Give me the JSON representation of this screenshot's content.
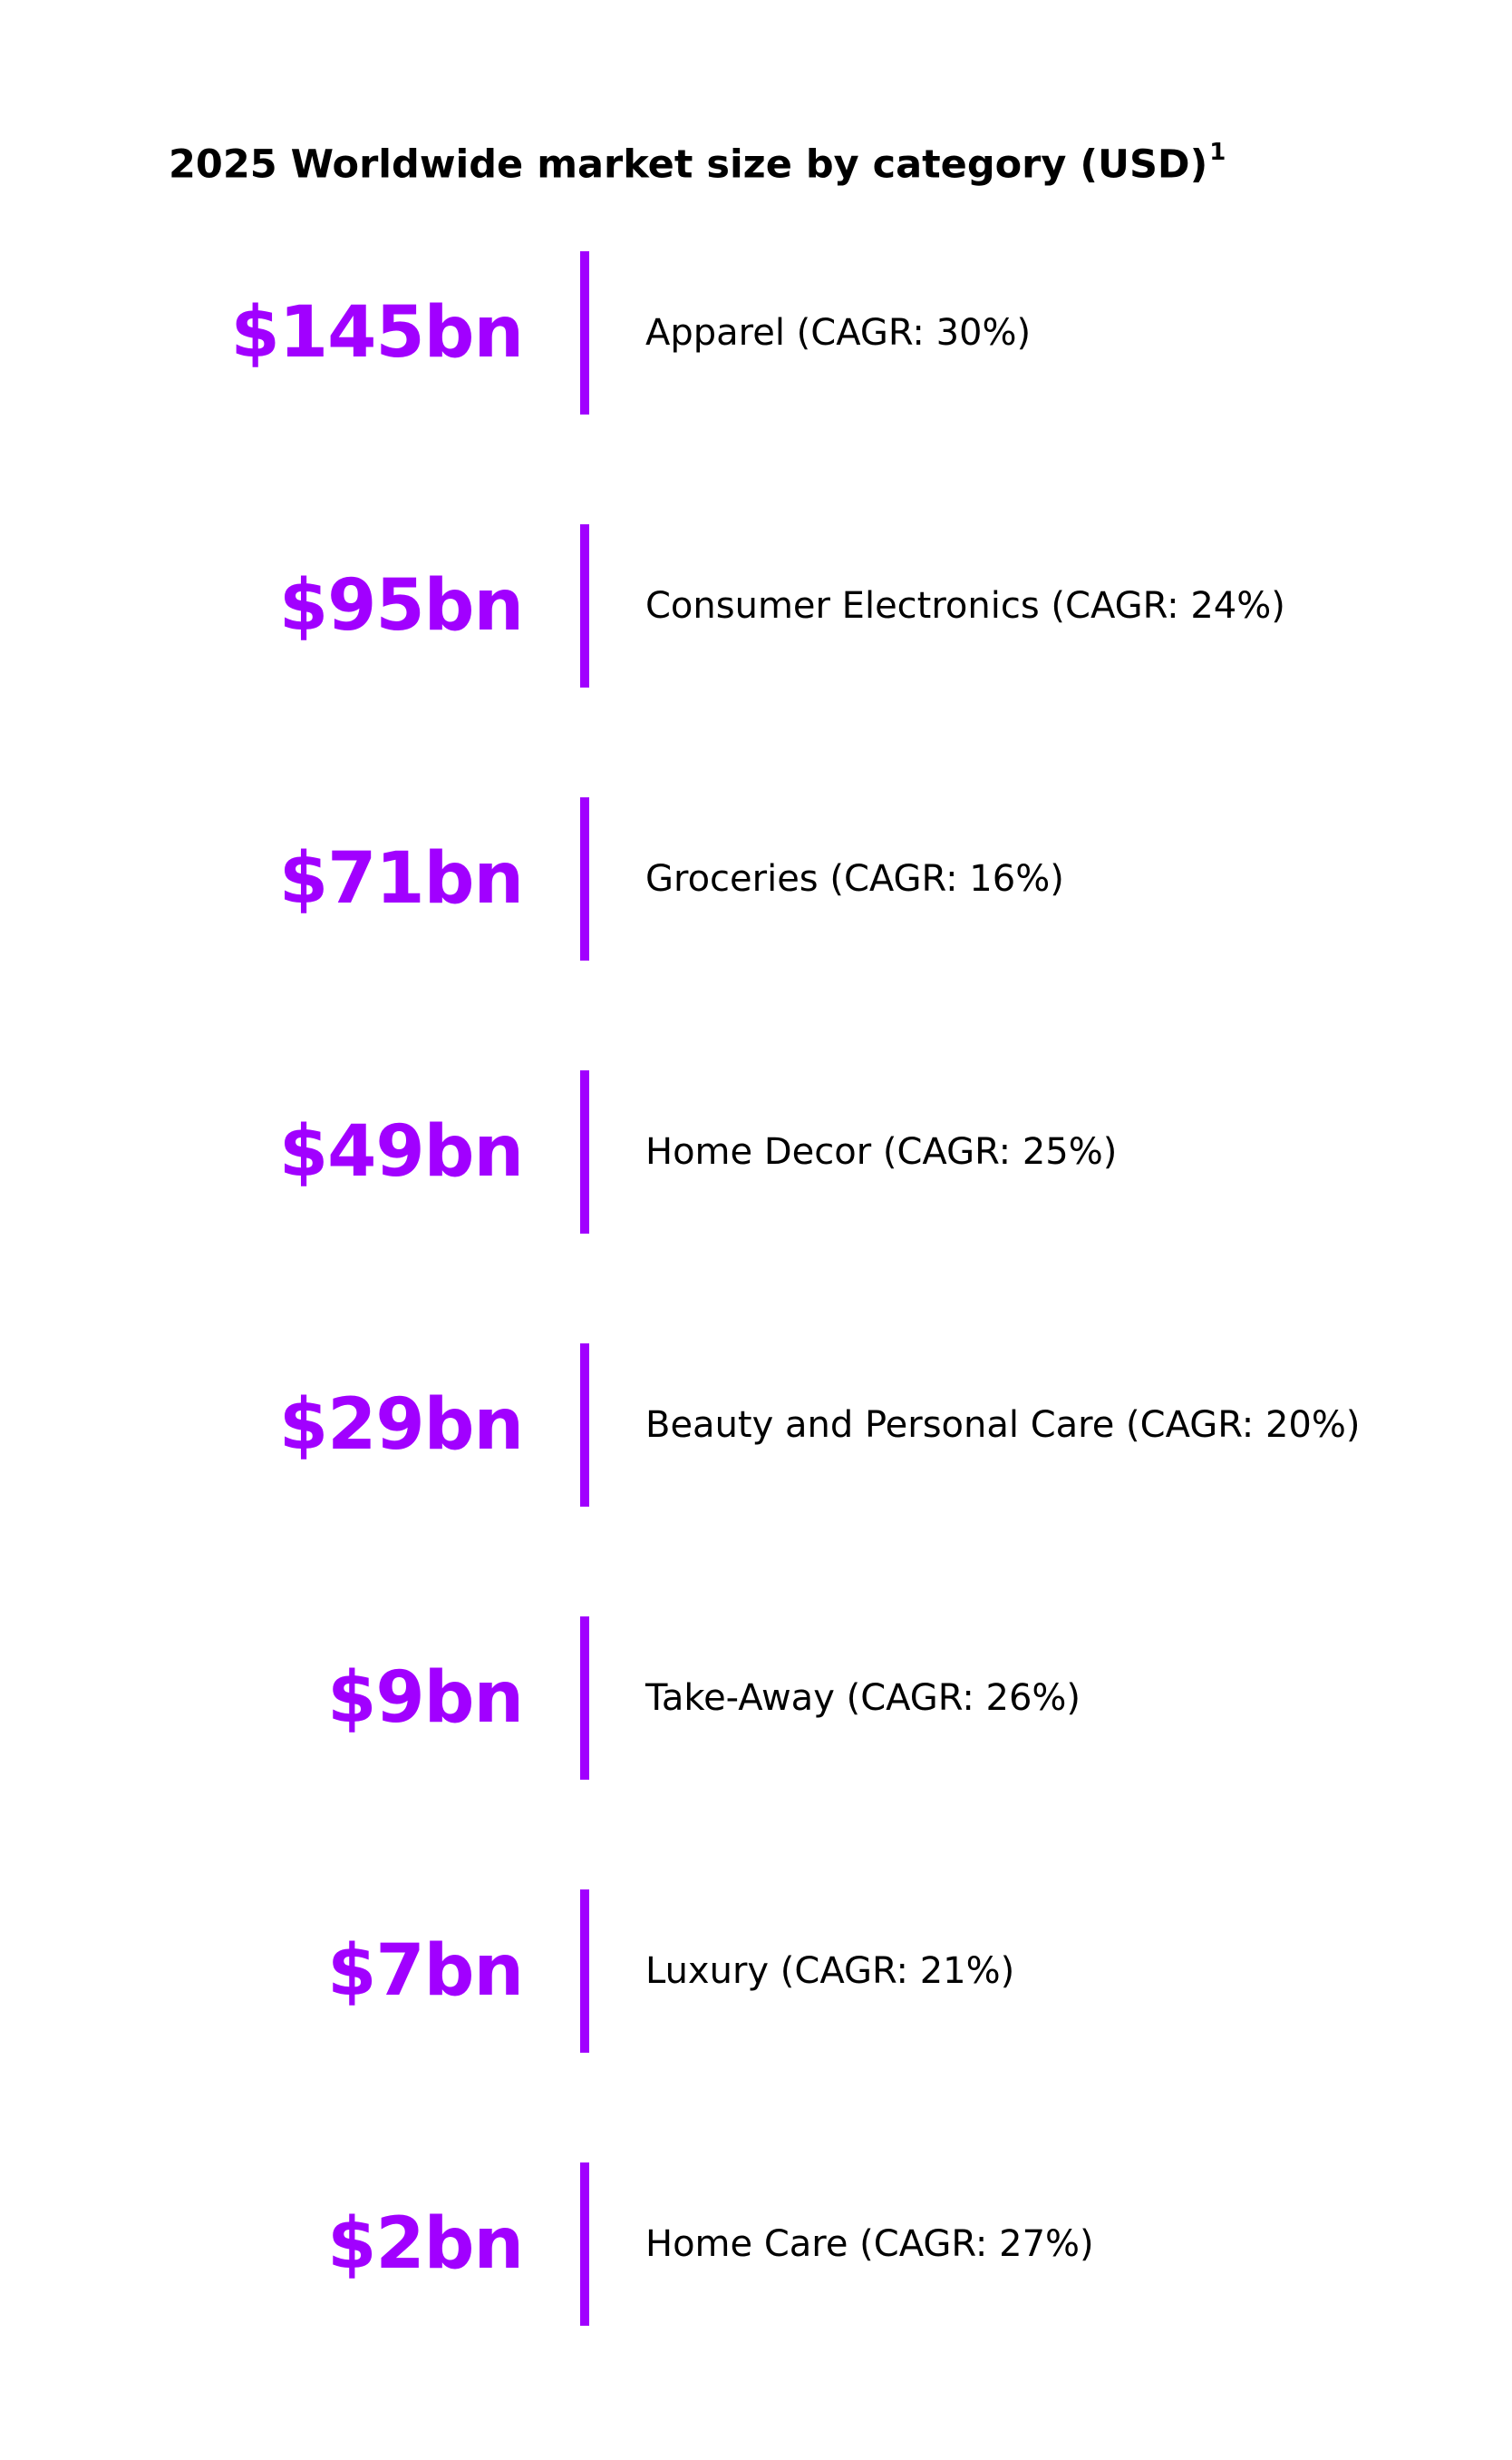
{
  "colors": {
    "accent": "#a100ff",
    "text": "#000000",
    "background": "#ffffff"
  },
  "title": {
    "text": "2025 Worldwide market size by category (USD)",
    "footnote_marker": "1"
  },
  "chart_data": {
    "type": "table",
    "title": "2025 Worldwide market size by category (USD)",
    "unit": "USD bn",
    "rows": [
      {
        "value": 145,
        "value_label": "$145bn",
        "category": "Apparel",
        "cagr": 30,
        "description": "Apparel (CAGR: 30%)"
      },
      {
        "value": 95,
        "value_label": "$95bn",
        "category": "Consumer Electronics",
        "cagr": 24,
        "description": "Consumer Electronics (CAGR: 24%)"
      },
      {
        "value": 71,
        "value_label": "$71bn",
        "category": "Groceries",
        "cagr": 16,
        "description": "Groceries (CAGR: 16%)"
      },
      {
        "value": 49,
        "value_label": "$49bn",
        "category": "Home Decor",
        "cagr": 25,
        "description": "Home Decor (CAGR: 25%)"
      },
      {
        "value": 29,
        "value_label": "$29bn",
        "category": "Beauty and Personal Care",
        "cagr": 20,
        "description": "Beauty and Personal Care (CAGR: 20%)"
      },
      {
        "value": 9,
        "value_label": "$9bn",
        "category": "Take-Away",
        "cagr": 26,
        "description": "Take-Away (CAGR: 26%)"
      },
      {
        "value": 7,
        "value_label": "$7bn",
        "category": "Luxury",
        "cagr": 21,
        "description": "Luxury (CAGR: 21%)"
      },
      {
        "value": 2,
        "value_label": "$2bn",
        "category": "Home Care",
        "cagr": 27,
        "description": "Home Care (CAGR: 27%)"
      }
    ]
  }
}
